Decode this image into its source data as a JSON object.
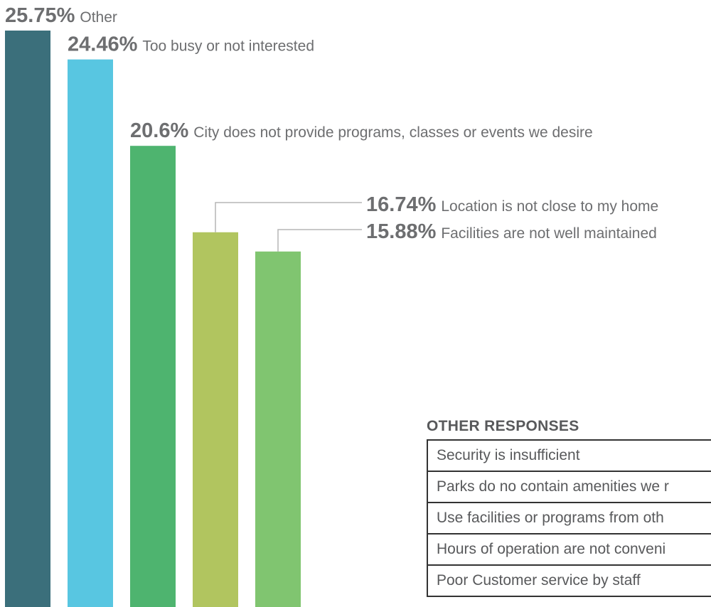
{
  "chart_data": {
    "type": "bar",
    "categories": [
      "Other",
      "Too busy or not interested",
      "City does not provide programs, classes or events we desire",
      "Location is not close to my home",
      "Facilities are not well maintained"
    ],
    "values": [
      25.75,
      24.46,
      20.6,
      16.74,
      15.88
    ],
    "value_labels": [
      "25.75%",
      "24.46%",
      "20.6%",
      "16.74%",
      "15.88%"
    ],
    "colors": [
      "#3b6f7b",
      "#58c6e1",
      "#4eb46f",
      "#b1c55f",
      "#80c570"
    ]
  },
  "other_responses": {
    "title": "OTHER RESPONSES",
    "rows": [
      "Security is insufficient",
      "Parks do no contain amenities we r",
      "Use facilities or programs from oth",
      "Hours of operation are not conveni",
      "Poor Customer service by staff"
    ]
  }
}
